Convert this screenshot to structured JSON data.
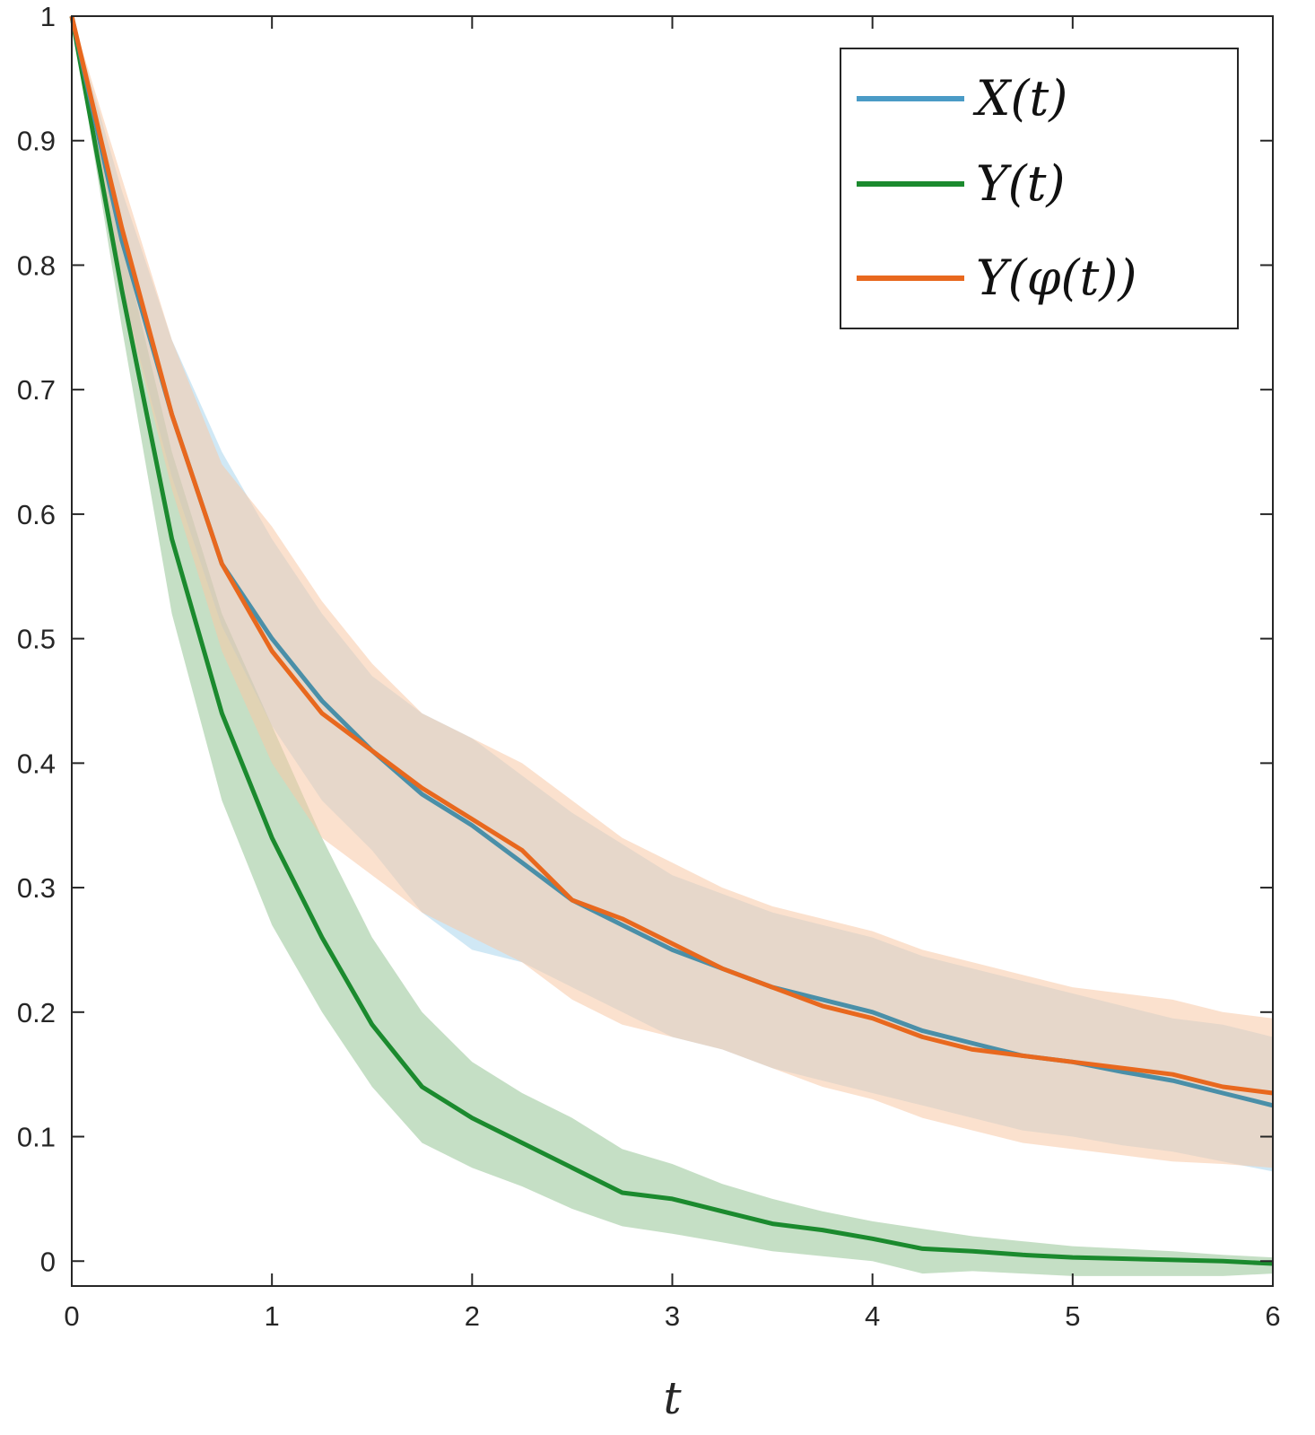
{
  "chart_data": {
    "type": "line",
    "title": "",
    "xlabel": "t",
    "ylabel": "",
    "xlim": [
      0,
      6
    ],
    "ylim": [
      -0.02,
      1
    ],
    "x_ticks": [
      0,
      1,
      2,
      3,
      4,
      5,
      6
    ],
    "x_tick_labels": [
      "0",
      "1",
      "2",
      "3",
      "4",
      "5",
      "6"
    ],
    "y_ticks": [
      0,
      0.1,
      0.2,
      0.3,
      0.4,
      0.5,
      0.6,
      0.7,
      0.8,
      0.9,
      1
    ],
    "y_tick_labels": [
      "0",
      "0.1",
      "0.2",
      "0.3",
      "0.4",
      "0.5",
      "0.6",
      "0.7",
      "0.8",
      "0.9",
      "1"
    ],
    "grid": false,
    "legend_position": "top-right",
    "x": [
      0,
      0.25,
      0.5,
      0.75,
      1.0,
      1.25,
      1.5,
      1.75,
      2.0,
      2.25,
      2.5,
      2.75,
      3.0,
      3.25,
      3.5,
      3.75,
      4.0,
      4.25,
      4.5,
      4.75,
      5.0,
      5.25,
      5.5,
      5.75,
      6.0
    ],
    "series": [
      {
        "name": "X(t)",
        "color": "#0072BD",
        "band_color": "#8EC9E6",
        "values": [
          1.0,
          0.82,
          0.68,
          0.56,
          0.5,
          0.45,
          0.41,
          0.375,
          0.35,
          0.32,
          0.29,
          0.27,
          0.25,
          0.235,
          0.22,
          0.21,
          0.2,
          0.185,
          0.175,
          0.165,
          0.16,
          0.152,
          0.145,
          0.135,
          0.125
        ],
        "lower": [
          1.0,
          0.78,
          0.63,
          0.51,
          0.43,
          0.37,
          0.33,
          0.28,
          0.25,
          0.24,
          0.22,
          0.2,
          0.18,
          0.17,
          0.155,
          0.145,
          0.135,
          0.125,
          0.115,
          0.105,
          0.1,
          0.093,
          0.088,
          0.08,
          0.072
        ],
        "upper": [
          1.0,
          0.86,
          0.74,
          0.65,
          0.58,
          0.52,
          0.47,
          0.44,
          0.42,
          0.39,
          0.36,
          0.335,
          0.31,
          0.295,
          0.28,
          0.27,
          0.26,
          0.245,
          0.235,
          0.225,
          0.215,
          0.205,
          0.195,
          0.19,
          0.18
        ]
      },
      {
        "name": "Y(t)",
        "color": "#1B8A2E",
        "band_color": "#8CBF8C",
        "values": [
          1.0,
          0.78,
          0.58,
          0.44,
          0.34,
          0.26,
          0.19,
          0.14,
          0.115,
          0.095,
          0.075,
          0.055,
          0.05,
          0.04,
          0.03,
          0.025,
          0.018,
          0.01,
          0.008,
          0.005,
          0.003,
          0.002,
          0.001,
          0.0,
          -0.002
        ],
        "lower": [
          1.0,
          0.75,
          0.52,
          0.37,
          0.27,
          0.2,
          0.14,
          0.095,
          0.075,
          0.06,
          0.042,
          0.028,
          0.022,
          0.015,
          0.008,
          0.004,
          0.0,
          -0.01,
          -0.008,
          -0.01,
          -0.012,
          -0.012,
          -0.012,
          -0.012,
          -0.01
        ],
        "upper": [
          1.0,
          0.82,
          0.65,
          0.52,
          0.43,
          0.34,
          0.26,
          0.2,
          0.16,
          0.135,
          0.115,
          0.09,
          0.078,
          0.062,
          0.05,
          0.04,
          0.032,
          0.026,
          0.02,
          0.016,
          0.012,
          0.01,
          0.008,
          0.005,
          0.003
        ]
      },
      {
        "name": "Y(φ(t))",
        "color": "#E8681E",
        "band_color": "#F8C8A5",
        "values": [
          1.0,
          0.83,
          0.68,
          0.56,
          0.49,
          0.44,
          0.41,
          0.38,
          0.355,
          0.33,
          0.29,
          0.275,
          0.255,
          0.235,
          0.22,
          0.205,
          0.195,
          0.18,
          0.17,
          0.165,
          0.16,
          0.155,
          0.15,
          0.14,
          0.135
        ],
        "lower": [
          1.0,
          0.78,
          0.62,
          0.49,
          0.4,
          0.34,
          0.31,
          0.28,
          0.26,
          0.24,
          0.21,
          0.19,
          0.18,
          0.17,
          0.155,
          0.14,
          0.13,
          0.115,
          0.105,
          0.095,
          0.09,
          0.085,
          0.08,
          0.078,
          0.075
        ],
        "upper": [
          1.0,
          0.87,
          0.74,
          0.64,
          0.59,
          0.53,
          0.48,
          0.44,
          0.42,
          0.4,
          0.37,
          0.34,
          0.32,
          0.3,
          0.285,
          0.275,
          0.265,
          0.25,
          0.24,
          0.23,
          0.22,
          0.215,
          0.21,
          0.2,
          0.195
        ]
      }
    ]
  }
}
